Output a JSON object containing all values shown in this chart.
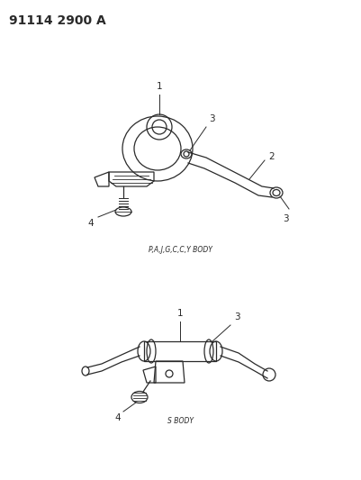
{
  "title": "91114 2900 A",
  "bg_color": "#ffffff",
  "line_color": "#2a2a2a",
  "label_color": "#2a2a2a",
  "body_label_top": "P,A,J,G,C,C,Y BODY",
  "body_label_bottom": "S BODY"
}
